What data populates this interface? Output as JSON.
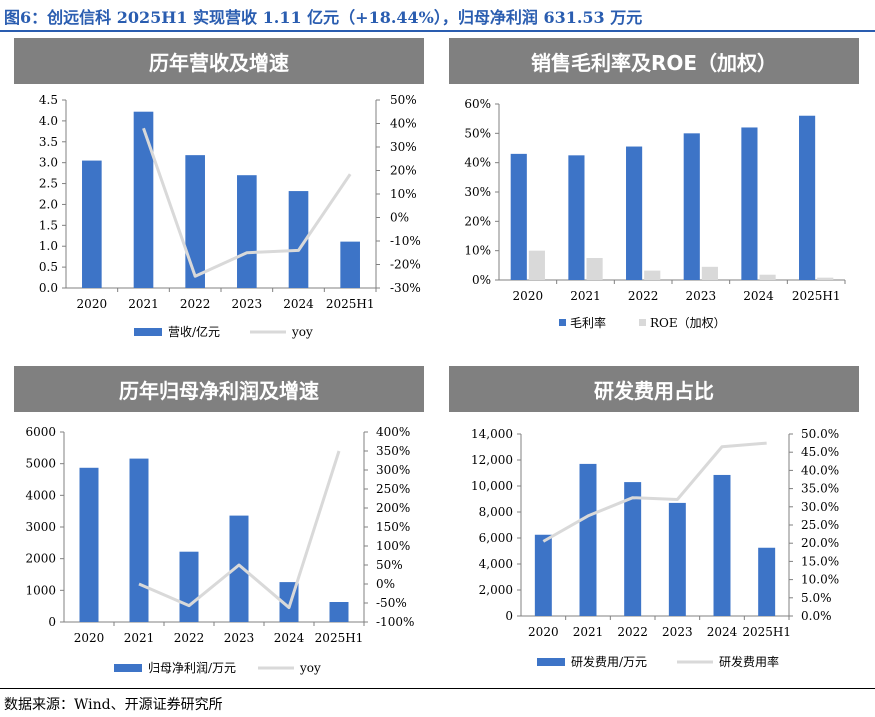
{
  "figure_title": "图6：创远信科 2025H1 实现营收 1.11 亿元（+18.44%），归母净利润 631.53 万元",
  "source_note": "数据来源：Wind、开源证券研究所",
  "colors": {
    "bar": "#3d74c7",
    "line": "#d9d9d9",
    "roe_bar": "#d9d9d9",
    "header_bg": "#808080",
    "title": "#2a5db0"
  },
  "chart_data": [
    {
      "id": "revenue",
      "type": "bar+line",
      "title": "历年营收及增速",
      "categories": [
        "2020",
        "2021",
        "2022",
        "2023",
        "2024",
        "2025H1"
      ],
      "bar_series": {
        "name": "营收/亿元",
        "values": [
          3.05,
          4.22,
          3.18,
          2.7,
          2.32,
          1.11
        ]
      },
      "line_series": {
        "name": "yoy",
        "values": [
          null,
          38.0,
          -25.0,
          -15.0,
          -14.0,
          18.44
        ]
      },
      "left_axis": {
        "min": 0,
        "max": 4.5,
        "step": 0.5,
        "ticks": [
          "0.0",
          "0.5",
          "1.0",
          "1.5",
          "2.0",
          "2.5",
          "3.0",
          "3.5",
          "4.0",
          "4.5"
        ]
      },
      "right_axis": {
        "min": -30,
        "max": 50,
        "step": 10,
        "ticks": [
          "-30%",
          "-20%",
          "-10%",
          "0%",
          "10%",
          "20%",
          "30%",
          "40%",
          "50%"
        ]
      },
      "legend_placement": "bottom"
    },
    {
      "id": "margin",
      "type": "bar",
      "title": "销售毛利率及ROE（加权）",
      "categories": [
        "2020",
        "2021",
        "2022",
        "2023",
        "2024",
        "2025H1"
      ],
      "series": [
        {
          "name": "毛利率",
          "values": [
            43.0,
            42.5,
            45.5,
            50.0,
            52.0,
            56.0
          ]
        },
        {
          "name": "ROE（加权）",
          "values": [
            10.0,
            7.5,
            3.2,
            4.5,
            1.8,
            0.8
          ]
        }
      ],
      "left_axis": {
        "min": 0,
        "max": 60,
        "step": 10,
        "ticks": [
          "0%",
          "10%",
          "20%",
          "30%",
          "40%",
          "50%",
          "60%"
        ]
      },
      "legend_placement": "bottom"
    },
    {
      "id": "profit",
      "type": "bar+line",
      "title": "历年归母净利润及增速",
      "categories": [
        "2020",
        "2021",
        "2022",
        "2023",
        "2024",
        "2025H1"
      ],
      "bar_series": {
        "name": "归母净利润/万元",
        "values": [
          4870,
          5160,
          2220,
          3360,
          1260,
          631.53
        ]
      },
      "line_series": {
        "name": "yoy",
        "values": [
          null,
          0,
          -57,
          50,
          -62,
          350
        ]
      },
      "left_axis": {
        "min": 0,
        "max": 6000,
        "step": 1000,
        "ticks": [
          "0",
          "1000",
          "2000",
          "3000",
          "4000",
          "5000",
          "6000"
        ]
      },
      "right_axis": {
        "min": -100,
        "max": 400,
        "step": 50,
        "ticks": [
          "-100%",
          "-50%",
          "0%",
          "50%",
          "100%",
          "150%",
          "200%",
          "250%",
          "300%",
          "350%",
          "400%"
        ]
      },
      "legend_placement": "bottom"
    },
    {
      "id": "rnd",
      "type": "bar+line",
      "title": "研发费用占比",
      "categories": [
        "2020",
        "2021",
        "2022",
        "2023",
        "2024",
        "2025H1"
      ],
      "bar_series": {
        "name": "研发费用/万元",
        "values": [
          6250,
          11700,
          10300,
          8700,
          10850,
          5250
        ]
      },
      "line_series": {
        "name": "研发费用率",
        "values": [
          20.5,
          27.5,
          32.5,
          32.0,
          46.5,
          47.5
        ]
      },
      "left_axis": {
        "min": 0,
        "max": 14000,
        "step": 2000,
        "ticks": [
          "0",
          "2,000",
          "4,000",
          "6,000",
          "8,000",
          "10,000",
          "12,000",
          "14,000"
        ]
      },
      "right_axis": {
        "min": 0,
        "max": 50,
        "step": 5,
        "ticks": [
          "0.0%",
          "5.0%",
          "10.0%",
          "15.0%",
          "20.0%",
          "25.0%",
          "30.0%",
          "35.0%",
          "40.0%",
          "45.0%",
          "50.0%"
        ]
      },
      "legend_placement": "bottom"
    }
  ]
}
